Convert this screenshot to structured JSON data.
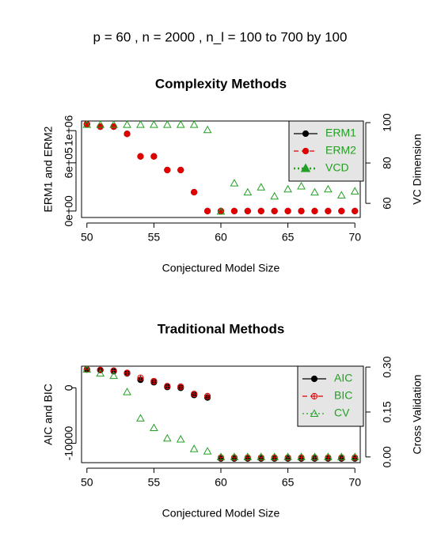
{
  "title": "p =  60 ,  n =  2000 , n_l =  100 to 700 by 100",
  "chart_data": [
    {
      "type": "scatter",
      "title": "Complexity Methods",
      "xlabel": "Conjectured Model Size",
      "ylabel": "ERM1 and ERM2",
      "y2label": "VC Dimension",
      "x": [
        50,
        51,
        52,
        53,
        54,
        55,
        56,
        57,
        58,
        59,
        60,
        61,
        62,
        63,
        64,
        65,
        66,
        67,
        68,
        69,
        70
      ],
      "xlim": [
        49.6,
        70.4
      ],
      "xticks": [
        50,
        55,
        60,
        65,
        70
      ],
      "ylim": [
        -80000,
        1120000
      ],
      "yticks": [
        {
          "value": 0,
          "label": "0e+00"
        },
        {
          "value": 600000,
          "label": "6e+05"
        },
        {
          "value": 1000000,
          "label": "1e+06"
        }
      ],
      "y2lim": [
        53,
        100.8
      ],
      "y2ticks": [
        60,
        80,
        100
      ],
      "legend": "top-right",
      "legend_text_color": "#22a022",
      "series": [
        {
          "name": "ERM1",
          "color": "#000000",
          "marker": "filled-circle",
          "legend_marker": "filled-circle",
          "line": "solid",
          "values": [
            1080000,
            1050000,
            1050000,
            960000,
            680000,
            680000,
            510000,
            510000,
            235000,
            0,
            0,
            0,
            0,
            0,
            0,
            0,
            0,
            0,
            0,
            0,
            0
          ]
        },
        {
          "name": "ERM2",
          "color": "#e00000",
          "marker": "filled-circle",
          "legend_marker": "filled-circle",
          "line": "dashed",
          "values": [
            1080000,
            1050000,
            1050000,
            960000,
            680000,
            680000,
            510000,
            510000,
            235000,
            0,
            0,
            0,
            0,
            0,
            0,
            0,
            0,
            0,
            0,
            0,
            0
          ]
        },
        {
          "name": "VCD",
          "color": "#22a022",
          "marker": "open-triangle",
          "legend_marker": "filled-triangle",
          "line": "dotted",
          "axis": "y2",
          "values": [
            99,
            99,
            99,
            99,
            99,
            99,
            99,
            99,
            99,
            96.4,
            56,
            70,
            65.5,
            68,
            63.5,
            67,
            68.5,
            65.5,
            67,
            64,
            66
          ]
        }
      ]
    },
    {
      "type": "scatter",
      "title": "Traditional Methods",
      "xlabel": "Conjectured Model Size",
      "ylabel": "AIC and BIC",
      "y2label": "Cross Validation",
      "x": [
        50,
        51,
        52,
        53,
        54,
        55,
        56,
        57,
        58,
        59,
        60,
        61,
        62,
        63,
        64,
        65,
        66,
        67,
        68,
        69,
        70
      ],
      "xlim": [
        49.6,
        70.4
      ],
      "xticks": [
        50,
        55,
        60,
        65,
        70
      ],
      "ylim": [
        -13500,
        3900
      ],
      "yticks": [
        -10000,
        0
      ],
      "y2lim": [
        -0.019,
        0.303
      ],
      "y2ticks": [
        {
          "value": 0,
          "label": "0.00"
        },
        {
          "value": 0.15,
          "label": "0.15"
        },
        {
          "value": 0.3,
          "label": "0.30"
        }
      ],
      "legend": "top-right",
      "legend_text_color": "#22a022",
      "series": [
        {
          "name": "AIC",
          "color": "#000000",
          "marker": "filled-circle",
          "legend_marker": "filled-circle",
          "line": "solid",
          "values": [
            3300,
            3200,
            3000,
            2600,
            1450,
            1000,
            150,
            0,
            -1300,
            -1750,
            -12750,
            -12750,
            -12750,
            -12750,
            -12750,
            -12750,
            -12750,
            -12750,
            -12750,
            -12750,
            -12750
          ]
        },
        {
          "name": "BIC",
          "color": "#e00000",
          "marker": "circle-plus",
          "legend_marker": "circle-plus",
          "line": "dashed",
          "values": [
            3300,
            3200,
            3100,
            2700,
            1800,
            1200,
            300,
            200,
            -1100,
            -1500,
            -12600,
            -12600,
            -12600,
            -12600,
            -12600,
            -12600,
            -12600,
            -12600,
            -12600,
            -12600,
            -12600
          ]
        },
        {
          "name": "CV",
          "color": "#22a022",
          "marker": "open-triangle",
          "legend_marker": "open-triangle",
          "line": "dotted",
          "axis": "y2",
          "values": [
            0.292,
            0.279,
            0.271,
            0.217,
            0.129,
            0.097,
            0.062,
            0.059,
            0.027,
            0.019,
            0,
            0,
            0,
            0,
            0,
            0,
            0,
            0,
            0,
            0,
            0
          ]
        }
      ]
    }
  ]
}
